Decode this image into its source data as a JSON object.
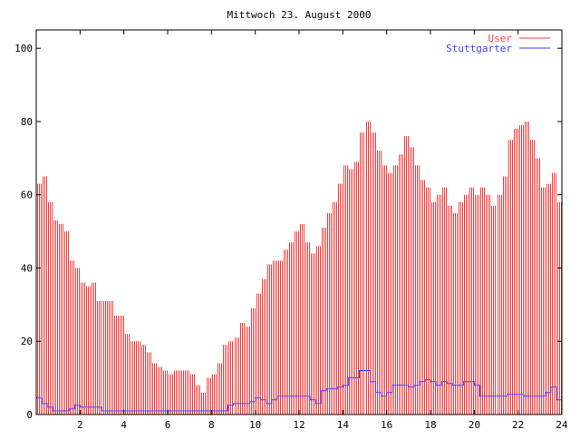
{
  "chart_data": {
    "type": "bar",
    "title": "Mittwoch 23. August 2000",
    "xlabel": "",
    "ylabel": "",
    "xlim": [
      0,
      24
    ],
    "ylim": [
      0,
      105
    ],
    "x_ticks": [
      "2",
      "4",
      "6",
      "8",
      "10",
      "12",
      "14",
      "16",
      "18",
      "20",
      "22",
      "24"
    ],
    "y_ticks": [
      "0",
      "20",
      "40",
      "60",
      "80",
      "100"
    ],
    "grid": false,
    "legend_position": "top-right",
    "interval_hours": 0.25,
    "series": [
      {
        "name": "User",
        "style": "impulses",
        "color": "#ff4040",
        "values": [
          63,
          65,
          58,
          53,
          52,
          50,
          42,
          40,
          36,
          35,
          36,
          31,
          31,
          31,
          27,
          27,
          22,
          20,
          20,
          19,
          17,
          14,
          13,
          12,
          11,
          12,
          12,
          12,
          11,
          8,
          6,
          10,
          11,
          14,
          19,
          20,
          21,
          25,
          24,
          29,
          33,
          37,
          41,
          42,
          42,
          45,
          47,
          50,
          52,
          47,
          44,
          46,
          51,
          55,
          58,
          63,
          68,
          67,
          69,
          77,
          80,
          77,
          72,
          68,
          66,
          68,
          71,
          76,
          73,
          68,
          64,
          62,
          58,
          60,
          62,
          57,
          55,
          58,
          60,
          62,
          60,
          62,
          60,
          57,
          60,
          65,
          75,
          78,
          79,
          80,
          75,
          70,
          62,
          63,
          66,
          58
        ]
      },
      {
        "name": "Stuttgarter",
        "style": "line",
        "color": "#4040ff",
        "values": [
          4.5,
          3,
          2,
          1,
          1,
          1,
          1.5,
          2.5,
          2,
          2,
          2,
          2,
          1,
          1,
          1,
          1,
          1,
          1,
          1,
          1,
          1,
          1,
          1,
          1,
          1,
          1,
          1,
          1,
          1,
          1,
          1,
          1,
          1,
          1,
          1,
          2.5,
          3,
          3,
          3,
          3.5,
          4.5,
          4,
          3,
          4,
          5,
          5,
          5,
          5,
          5,
          5,
          4,
          3,
          6.5,
          7,
          7,
          7.5,
          8,
          10,
          10,
          12,
          12,
          9,
          6,
          5,
          6,
          8,
          8,
          8,
          7.5,
          8,
          9,
          9.5,
          9,
          8,
          9,
          8.5,
          8,
          8,
          9,
          9,
          8,
          5,
          5,
          5,
          5,
          5,
          5.5,
          5.5,
          5.5,
          5,
          5,
          5,
          5,
          6,
          7.5,
          4
        ]
      }
    ]
  }
}
